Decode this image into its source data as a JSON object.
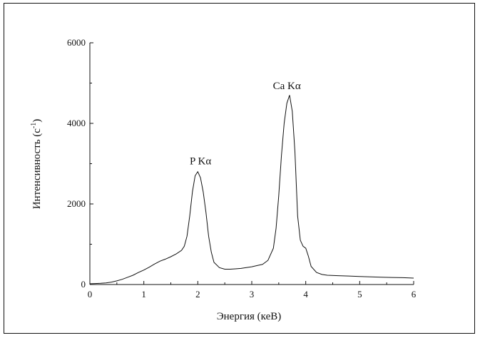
{
  "chart_data": {
    "type": "line",
    "xlabel": "Энергия (кеВ)",
    "ylabel_main": "Интенсивность (с",
    "ylabel_sup": "-1",
    "ylabel_close": ")",
    "xlim": [
      0,
      6
    ],
    "ylim": [
      0,
      6000
    ],
    "x_ticks": [
      0,
      1,
      2,
      3,
      4,
      5,
      6
    ],
    "y_ticks": [
      0,
      2000,
      4000,
      6000
    ],
    "grid": false,
    "annotations": [
      {
        "text": "P Kα",
        "x": 2.05,
        "y": 2980
      },
      {
        "text": "Ca Kα",
        "x": 3.65,
        "y": 4850
      }
    ],
    "series": [
      {
        "x": [
          0.0,
          0.1,
          0.2,
          0.3,
          0.4,
          0.5,
          0.6,
          0.7,
          0.8,
          0.9,
          1.0,
          1.1,
          1.2,
          1.3,
          1.4,
          1.5,
          1.6,
          1.7,
          1.75,
          1.8,
          1.85,
          1.9,
          1.95,
          2.0,
          2.05,
          2.1,
          2.15,
          2.2,
          2.25,
          2.3,
          2.4,
          2.5,
          2.6,
          2.7,
          2.8,
          2.9,
          3.0,
          3.1,
          3.2,
          3.3,
          3.4,
          3.45,
          3.5,
          3.55,
          3.6,
          3.65,
          3.7,
          3.75,
          3.8,
          3.85,
          3.9,
          3.95,
          4.0,
          4.05,
          4.1,
          4.2,
          4.3,
          4.4,
          4.6,
          4.8,
          5.0,
          5.2,
          5.4,
          5.6,
          5.8,
          6.0
        ],
        "values": [
          20,
          25,
          30,
          40,
          60,
          90,
          130,
          180,
          230,
          300,
          360,
          430,
          510,
          580,
          630,
          690,
          760,
          850,
          950,
          1200,
          1700,
          2300,
          2700,
          2800,
          2650,
          2300,
          1800,
          1200,
          800,
          550,
          420,
          380,
          380,
          390,
          400,
          420,
          440,
          470,
          500,
          600,
          900,
          1400,
          2200,
          3200,
          4000,
          4500,
          4700,
          4300,
          3300,
          1700,
          1100,
          950,
          900,
          700,
          450,
          300,
          250,
          230,
          220,
          210,
          200,
          190,
          180,
          175,
          170,
          160
        ]
      }
    ]
  }
}
